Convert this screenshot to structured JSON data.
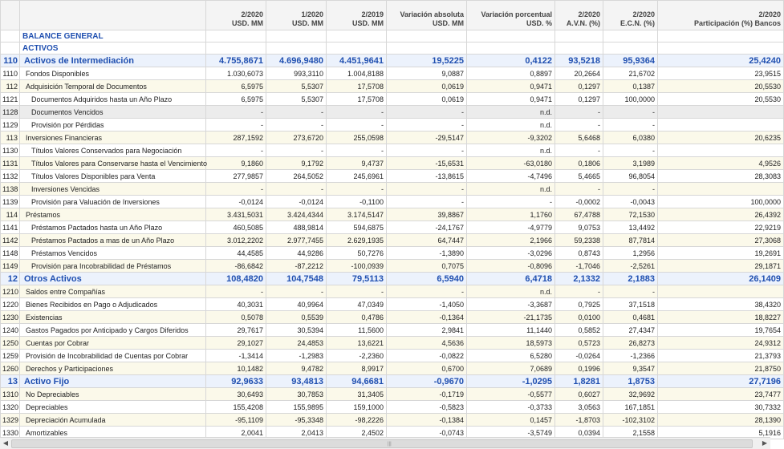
{
  "table": {
    "headers": [
      {
        "l1": "",
        "l2": ""
      },
      {
        "l1": "",
        "l2": ""
      },
      {
        "l1": "2/2020",
        "l2": "USD. MM"
      },
      {
        "l1": "1/2020",
        "l2": "USD. MM"
      },
      {
        "l1": "2/2019",
        "l2": "USD. MM"
      },
      {
        "l1": "Variación absoluta",
        "l2": "USD. MM"
      },
      {
        "l1": "Variación porcentual",
        "l2": "USD. %"
      },
      {
        "l1": "2/2020",
        "l2": "A.V.N. (%)"
      },
      {
        "l1": "2/2020",
        "l2": "E.C.N. (%)"
      },
      {
        "l1": "2/2020",
        "l2": "Participación (%) Bancos"
      }
    ],
    "section_titles": [
      "BALANCE GENERAL",
      "ACTIVOS"
    ],
    "rows": [
      {
        "code": "110",
        "desc": "Activos de Intermediación",
        "v": [
          "4.755,8671",
          "4.696,9480",
          "4.451,9641",
          "19,5225",
          "0,4122",
          "93,5218",
          "95,9364",
          "25,4240"
        ]
      },
      {
        "code": "1110",
        "desc": "Fondos Disponibles",
        "v": [
          "1.030,6073",
          "993,3110",
          "1.004,8188",
          "9,0887",
          "0,8897",
          "20,2664",
          "21,6702",
          "23,9515"
        ]
      },
      {
        "code": "112",
        "desc": "Adquisición Temporal de Documentos",
        "v": [
          "6,5975",
          "5,5307",
          "17,5708",
          "0,0619",
          "0,9471",
          "0,1297",
          "0,1387",
          "20,5530"
        ]
      },
      {
        "code": "1121",
        "desc": "Documentos Adquiridos hasta un Año Plazo",
        "v": [
          "6,5975",
          "5,5307",
          "17,5708",
          "0,0619",
          "0,9471",
          "0,1297",
          "100,0000",
          "20,5530"
        ]
      },
      {
        "code": "1128",
        "desc": "Documentos Vencidos",
        "v": [
          "-",
          "-",
          "-",
          "-",
          "n.d.",
          "-",
          "-",
          ""
        ]
      },
      {
        "code": "1129",
        "desc": "Provisión por Pérdidas",
        "v": [
          "-",
          "-",
          "-",
          "-",
          "n.d.",
          "-",
          "-",
          ""
        ]
      },
      {
        "code": "113",
        "desc": "Inversiones Financieras",
        "v": [
          "287,1592",
          "273,6720",
          "255,0598",
          "-29,5147",
          "-9,3202",
          "5,6468",
          "6,0380",
          "20,6235"
        ]
      },
      {
        "code": "1130",
        "desc": "Títulos Valores Conservados para Negociación",
        "v": [
          "-",
          "-",
          "-",
          "-",
          "n.d.",
          "-",
          "-",
          ""
        ]
      },
      {
        "code": "1131",
        "desc": "Títulos Valores para Conservarse hasta el Vencimiento",
        "v": [
          "9,1860",
          "9,1792",
          "9,4737",
          "-15,6531",
          "-63,0180",
          "0,1806",
          "3,1989",
          "4,9526"
        ]
      },
      {
        "code": "1132",
        "desc": "Títulos Valores Disponibles para Venta",
        "v": [
          "277,9857",
          "264,5052",
          "245,6961",
          "-13,8615",
          "-4,7496",
          "5,4665",
          "96,8054",
          "28,3083"
        ]
      },
      {
        "code": "1138",
        "desc": "Inversiones Vencidas",
        "v": [
          "-",
          "-",
          "-",
          "-",
          "n.d.",
          "-",
          "-",
          ""
        ]
      },
      {
        "code": "1139",
        "desc": "Provisión para Valuación de Inversiones",
        "v": [
          "-0,0124",
          "-0,0124",
          "-0,1100",
          "-",
          "-",
          "-0,0002",
          "-0,0043",
          "100,0000"
        ]
      },
      {
        "code": "114",
        "desc": "Préstamos",
        "v": [
          "3.431,5031",
          "3.424,4344",
          "3.174,5147",
          "39,8867",
          "1,1760",
          "67,4788",
          "72,1530",
          "26,4392"
        ]
      },
      {
        "code": "1141",
        "desc": "Préstamos Pactados hasta un Año Plazo",
        "v": [
          "460,5085",
          "488,9814",
          "594,6875",
          "-24,1767",
          "-4,9779",
          "9,0753",
          "13,4492",
          "22,9219"
        ]
      },
      {
        "code": "1142",
        "desc": "Préstamos Pactados a mas de un Año Plazo",
        "v": [
          "3.012,2202",
          "2.977,7455",
          "2.629,1935",
          "64,7447",
          "2,1966",
          "59,2338",
          "87,7814",
          "27,3068"
        ]
      },
      {
        "code": "1148",
        "desc": "Préstamos Vencidos",
        "v": [
          "44,4585",
          "44,9286",
          "50,7276",
          "-1,3890",
          "-3,0296",
          "0,8743",
          "1,2956",
          "19,2691"
        ]
      },
      {
        "code": "1149",
        "desc": "Provisión para Incobrabilidad de Préstamos",
        "v": [
          "-86,6842",
          "-87,2212",
          "-100,0939",
          "0,7075",
          "-0,8096",
          "-1,7046",
          "-2,5261",
          "29,1871"
        ]
      },
      {
        "code": "12",
        "desc": "Otros Activos",
        "v": [
          "108,4820",
          "104,7548",
          "79,5113",
          "6,5940",
          "6,4718",
          "2,1332",
          "2,1883",
          "26,1409"
        ]
      },
      {
        "code": "1210",
        "desc": "Saldos entre Compañías",
        "v": [
          "-",
          "-",
          "-",
          "-",
          "n.d.",
          "-",
          "-",
          ""
        ]
      },
      {
        "code": "1220",
        "desc": "Bienes Recibidos en Pago o Adjudicados",
        "v": [
          "40,3031",
          "40,9964",
          "47,0349",
          "-1,4050",
          "-3,3687",
          "0,7925",
          "37,1518",
          "38,4320"
        ]
      },
      {
        "code": "1230",
        "desc": "Existencias",
        "v": [
          "0,5078",
          "0,5539",
          "0,4786",
          "-0,1364",
          "-21,1735",
          "0,0100",
          "0,4681",
          "18,8227"
        ]
      },
      {
        "code": "1240",
        "desc": "Gastos Pagados por Anticipado y Cargos Diferidos",
        "v": [
          "29,7617",
          "30,5394",
          "11,5600",
          "2,9841",
          "11,1440",
          "0,5852",
          "27,4347",
          "19,7654"
        ]
      },
      {
        "code": "1250",
        "desc": "Cuentas por Cobrar",
        "v": [
          "29,1027",
          "24,4853",
          "13,6221",
          "4,5636",
          "18,5973",
          "0,5723",
          "26,8273",
          "24,9312"
        ]
      },
      {
        "code": "1259",
        "desc": "Provisión de Incobrabilidad de Cuentas por Cobrar",
        "v": [
          "-1,3414",
          "-1,2983",
          "-2,2360",
          "-0,0822",
          "6,5280",
          "-0,0264",
          "-1,2366",
          "21,3793"
        ]
      },
      {
        "code": "1260",
        "desc": "Derechos y Participaciones",
        "v": [
          "10,1482",
          "9,4782",
          "8,9917",
          "0,6700",
          "7,0689",
          "0,1996",
          "9,3547",
          "21,8750"
        ]
      },
      {
        "code": "13",
        "desc": "Activo Fijo",
        "v": [
          "92,9633",
          "93,4813",
          "94,6681",
          "-0,9670",
          "-1,0295",
          "1,8281",
          "1,8753",
          "27,7196"
        ]
      },
      {
        "code": "1310",
        "desc": "No Depreciables",
        "v": [
          "30,6493",
          "30,7853",
          "31,3405",
          "-0,1719",
          "-0,5577",
          "0,6027",
          "32,9692",
          "23,7477"
        ]
      },
      {
        "code": "1320",
        "desc": "Depreciables",
        "v": [
          "155,4208",
          "155,9895",
          "159,1000",
          "-0,5823",
          "-0,3733",
          "3,0563",
          "167,1851",
          "30,7332"
        ]
      },
      {
        "code": "1329",
        "desc": "Depreciación Acumulada",
        "v": [
          "-95,1109",
          "-95,3348",
          "-98,2226",
          "-0,1384",
          "0,1457",
          "-1,8703",
          "-102,3102",
          "28,1390"
        ]
      },
      {
        "code": "1330",
        "desc": "Amortizables",
        "v": [
          "2,0041",
          "2,0413",
          "2,4502",
          "-0,0743",
          "-3,5749",
          "0,0394",
          "2,1558",
          "5,1916"
        ]
      }
    ]
  },
  "scrollbar": {
    "left_arrow": "◀",
    "right_arrow": "▶",
    "grip": "|||"
  }
}
